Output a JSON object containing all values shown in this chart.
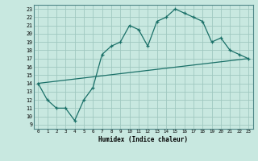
{
  "xlabel": "Humidex (Indice chaleur)",
  "ylabel": "",
  "background_color": "#c8e8e0",
  "grid_color": "#a0c8c0",
  "line_color": "#1a7068",
  "xlim": [
    -0.5,
    23.5
  ],
  "ylim": [
    8.5,
    23.5
  ],
  "yticks": [
    9,
    10,
    11,
    12,
    13,
    14,
    15,
    16,
    17,
    18,
    19,
    20,
    21,
    22,
    23
  ],
  "xticks": [
    0,
    1,
    2,
    3,
    4,
    5,
    6,
    7,
    8,
    9,
    10,
    11,
    12,
    13,
    14,
    15,
    16,
    17,
    18,
    19,
    20,
    21,
    22,
    23
  ],
  "line1_x": [
    0,
    1,
    2,
    3,
    4,
    5,
    6,
    7,
    8,
    9,
    10,
    11,
    12,
    13,
    14,
    15,
    16,
    17,
    18,
    19,
    20,
    21,
    22,
    23
  ],
  "line1_y": [
    14,
    12,
    11,
    11,
    9.5,
    12,
    13.5,
    17.5,
    18.5,
    19,
    21,
    20.5,
    18.5,
    21.5,
    22,
    23,
    22.5,
    22,
    21.5,
    19,
    19.5,
    18,
    17.5,
    17
  ],
  "line2_x": [
    0,
    23
  ],
  "line2_y": [
    14,
    17
  ]
}
